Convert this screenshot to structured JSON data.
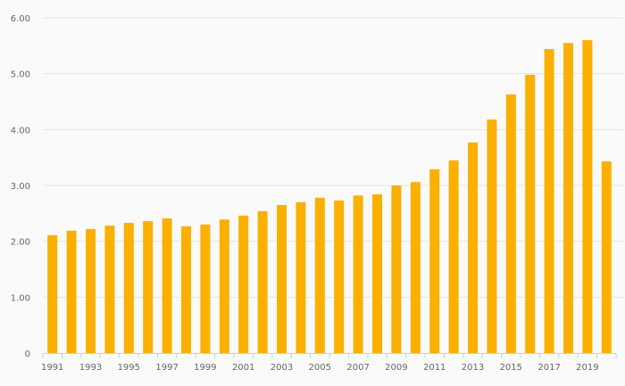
{
  "chart_data": {
    "type": "bar",
    "title": "",
    "xlabel": "",
    "ylabel": "",
    "ylim": [
      0,
      6
    ],
    "yticks": [
      "0",
      "1.00",
      "2.00",
      "3.00",
      "4.00",
      "5.00",
      "6.00"
    ],
    "categories": [
      "1991",
      "1992",
      "1993",
      "1994",
      "1995",
      "1996",
      "1997",
      "1998",
      "1999",
      "2000",
      "2001",
      "2002",
      "2003",
      "2004",
      "2005",
      "2006",
      "2007",
      "2008",
      "2009",
      "2010",
      "2011",
      "2012",
      "2013",
      "2014",
      "2015",
      "2016",
      "2017",
      "2018",
      "2019",
      "2020"
    ],
    "xtick_labels": [
      "1991",
      "1993",
      "1995",
      "1997",
      "1999",
      "2001",
      "2003",
      "2005",
      "2007",
      "2009",
      "2011",
      "2013",
      "2015",
      "2017",
      "2019"
    ],
    "values": [
      2.11,
      2.19,
      2.22,
      2.28,
      2.33,
      2.36,
      2.41,
      2.27,
      2.3,
      2.39,
      2.46,
      2.54,
      2.65,
      2.7,
      2.78,
      2.73,
      2.82,
      2.84,
      3.0,
      3.06,
      3.29,
      3.45,
      3.77,
      4.18,
      4.63,
      4.98,
      5.44,
      5.55,
      5.6,
      3.43
    ],
    "bar_color": "#fbb000",
    "grid": true
  }
}
